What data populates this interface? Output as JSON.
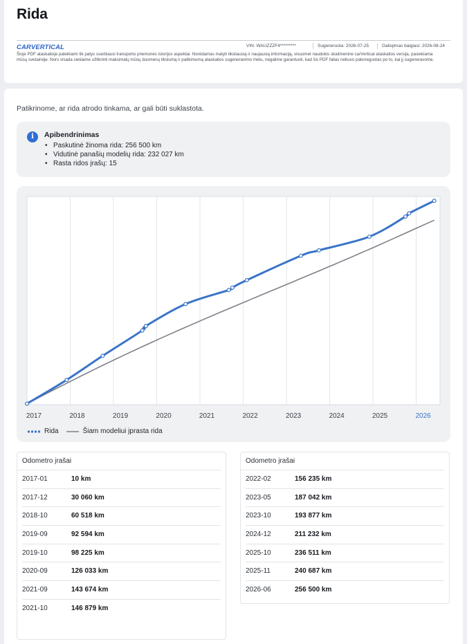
{
  "header": {
    "title": "Rida",
    "logo": "CARVERTICAL",
    "vin": "VIN: WAUZZZF4*********",
    "generated": "Sugeneruota: 2026-07-25",
    "valid": "Galiojimas baigiasi: 2026-08-24",
    "disclaimer": "Šioje PDF ataskaitoje pateikiami tik patys svarbiausi transporto priemonės istorijos aspektai. Norėdamas matyti tiksliausią ir naujausią informaciją, visuomet naudokis skaitmenine carVertical ataskaitos versija, pasiekiama mūsų svetainėje. Nors visada siekiame užtikrinti maksimalų mūsų duomenų tikslumą ir patikimumą ataskaitos sugeneravimo metu, negalime garantuoti, kad šis PDF failas nebuvo pakoreguotas po to, kai jį sugeneravome."
  },
  "intro": "Patikrinome, ar rida atrodo tinkama, ar gali būti suklastota.",
  "summary": {
    "icon": "info-icon",
    "title": "Apibendrinimas",
    "items": [
      "Paskutinė žinoma rida: 256 500 km",
      "Vidutinė panašių modelių rida: 232 027 km",
      "Rasta ridos įrašų: 15"
    ]
  },
  "colors": {
    "accent": "#3a74c8",
    "average": "#7d8087",
    "background": "#f0f1f3"
  },
  "chart_data": {
    "type": "line",
    "x_ticks": [
      "2017",
      "2018",
      "2019",
      "2020",
      "2021",
      "2022",
      "2023",
      "2024",
      "2025",
      "2026"
    ],
    "highlight_tick": "2026",
    "legend_position": "bottom-left",
    "grid": true,
    "series": [
      {
        "name": "Rida",
        "style": "solid-with-dots",
        "color": "#3a74c8",
        "points": [
          {
            "x": "2017-01",
            "y": 10
          },
          {
            "x": "2017-12",
            "y": 30060
          },
          {
            "x": "2018-10",
            "y": 60518
          },
          {
            "x": "2019-09",
            "y": 92594
          },
          {
            "x": "2019-10",
            "y": 98225
          },
          {
            "x": "2020-09",
            "y": 126033
          },
          {
            "x": "2021-09",
            "y": 143674
          },
          {
            "x": "2021-10",
            "y": 146879
          },
          {
            "x": "2022-02",
            "y": 156235
          },
          {
            "x": "2023-05",
            "y": 187042
          },
          {
            "x": "2023-10",
            "y": 193877
          },
          {
            "x": "2024-12",
            "y": 211232
          },
          {
            "x": "2025-10",
            "y": 236511
          },
          {
            "x": "2025-11",
            "y": 240687
          },
          {
            "x": "2026-06",
            "y": 256500
          }
        ]
      },
      {
        "name": "Šiam modeliui įprasta rida",
        "style": "line",
        "color": "#7d8087",
        "points": [
          {
            "x": "2017-01",
            "y": 0
          },
          {
            "x": "2026-06",
            "y": 232027
          }
        ]
      }
    ]
  },
  "odometer": {
    "left_title": "Odometro įrašai",
    "right_title": "Odometro įrašai",
    "left_rows": [
      {
        "date": "2017-01",
        "km": "10 km"
      },
      {
        "date": "2017-12",
        "km": "30 060 km"
      },
      {
        "date": "2018-10",
        "km": "60 518 km"
      },
      {
        "date": "2019-09",
        "km": "92 594 km"
      },
      {
        "date": "2019-10",
        "km": "98 225 km"
      },
      {
        "date": "2020-09",
        "km": "126 033 km"
      },
      {
        "date": "2021-09",
        "km": "143 674 km"
      },
      {
        "date": "2021-10",
        "km": "146 879 km"
      }
    ],
    "right_rows": [
      {
        "date": "2022-02",
        "km": "156 235 km"
      },
      {
        "date": "2023-05",
        "km": "187 042 km"
      },
      {
        "date": "2023-10",
        "km": "193 877 km"
      },
      {
        "date": "2024-12",
        "km": "211 232 km"
      },
      {
        "date": "2025-10",
        "km": "236 511 km"
      },
      {
        "date": "2025-11",
        "km": "240 687 km"
      },
      {
        "date": "2026-06",
        "km": "256 500 km"
      }
    ]
  }
}
